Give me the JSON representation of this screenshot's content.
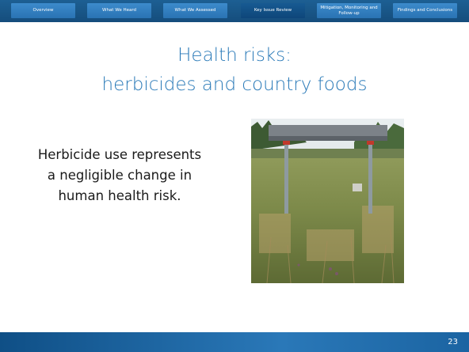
{
  "nav": {
    "tabs": [
      "Overview",
      "What We Heard",
      "What We Assessed",
      "Key Issue Review",
      "Mitigation, Monitoring and Follow-up",
      "Findings and Conclusions"
    ]
  },
  "title": {
    "line1": "Health risks:",
    "line2": "herbicides and country foods"
  },
  "body": {
    "text": "Herbicide use represents a negligible change in human health risk."
  },
  "footer": {
    "page_number": 23
  }
}
